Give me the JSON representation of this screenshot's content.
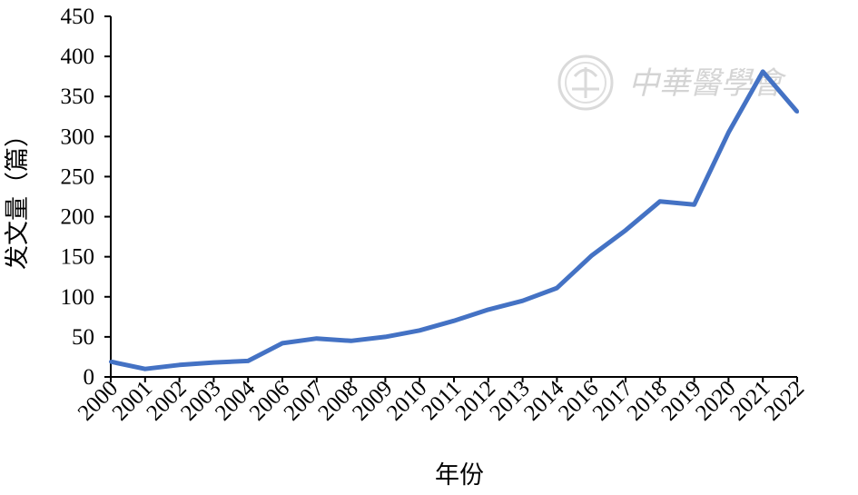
{
  "chart_data": {
    "type": "line",
    "xlabel": "年份",
    "ylabel": "发文量（篇）",
    "ylim": [
      0,
      450
    ],
    "yticks": [
      "0",
      "50",
      "100",
      "150",
      "200",
      "250",
      "300",
      "350",
      "400",
      "450"
    ],
    "categories": [
      "2000",
      "2001",
      "2002",
      "2003",
      "2004",
      "2006",
      "2007",
      "2008",
      "2009",
      "2010",
      "2011",
      "2012",
      "2013",
      "2014",
      "2016",
      "2017",
      "2018",
      "2019",
      "2020",
      "2021",
      "2022"
    ],
    "series": [
      {
        "values": [
          19,
          10,
          15,
          18,
          20,
          42,
          48,
          45,
          50,
          58,
          70,
          84,
          95,
          111,
          151,
          183,
          219,
          215,
          305,
          381,
          331
        ],
        "color": "#4472c4"
      }
    ],
    "grid": false,
    "legend": "none"
  },
  "watermark": {
    "text": "中華醫學會",
    "icon": "medical-association-seal-icon"
  }
}
